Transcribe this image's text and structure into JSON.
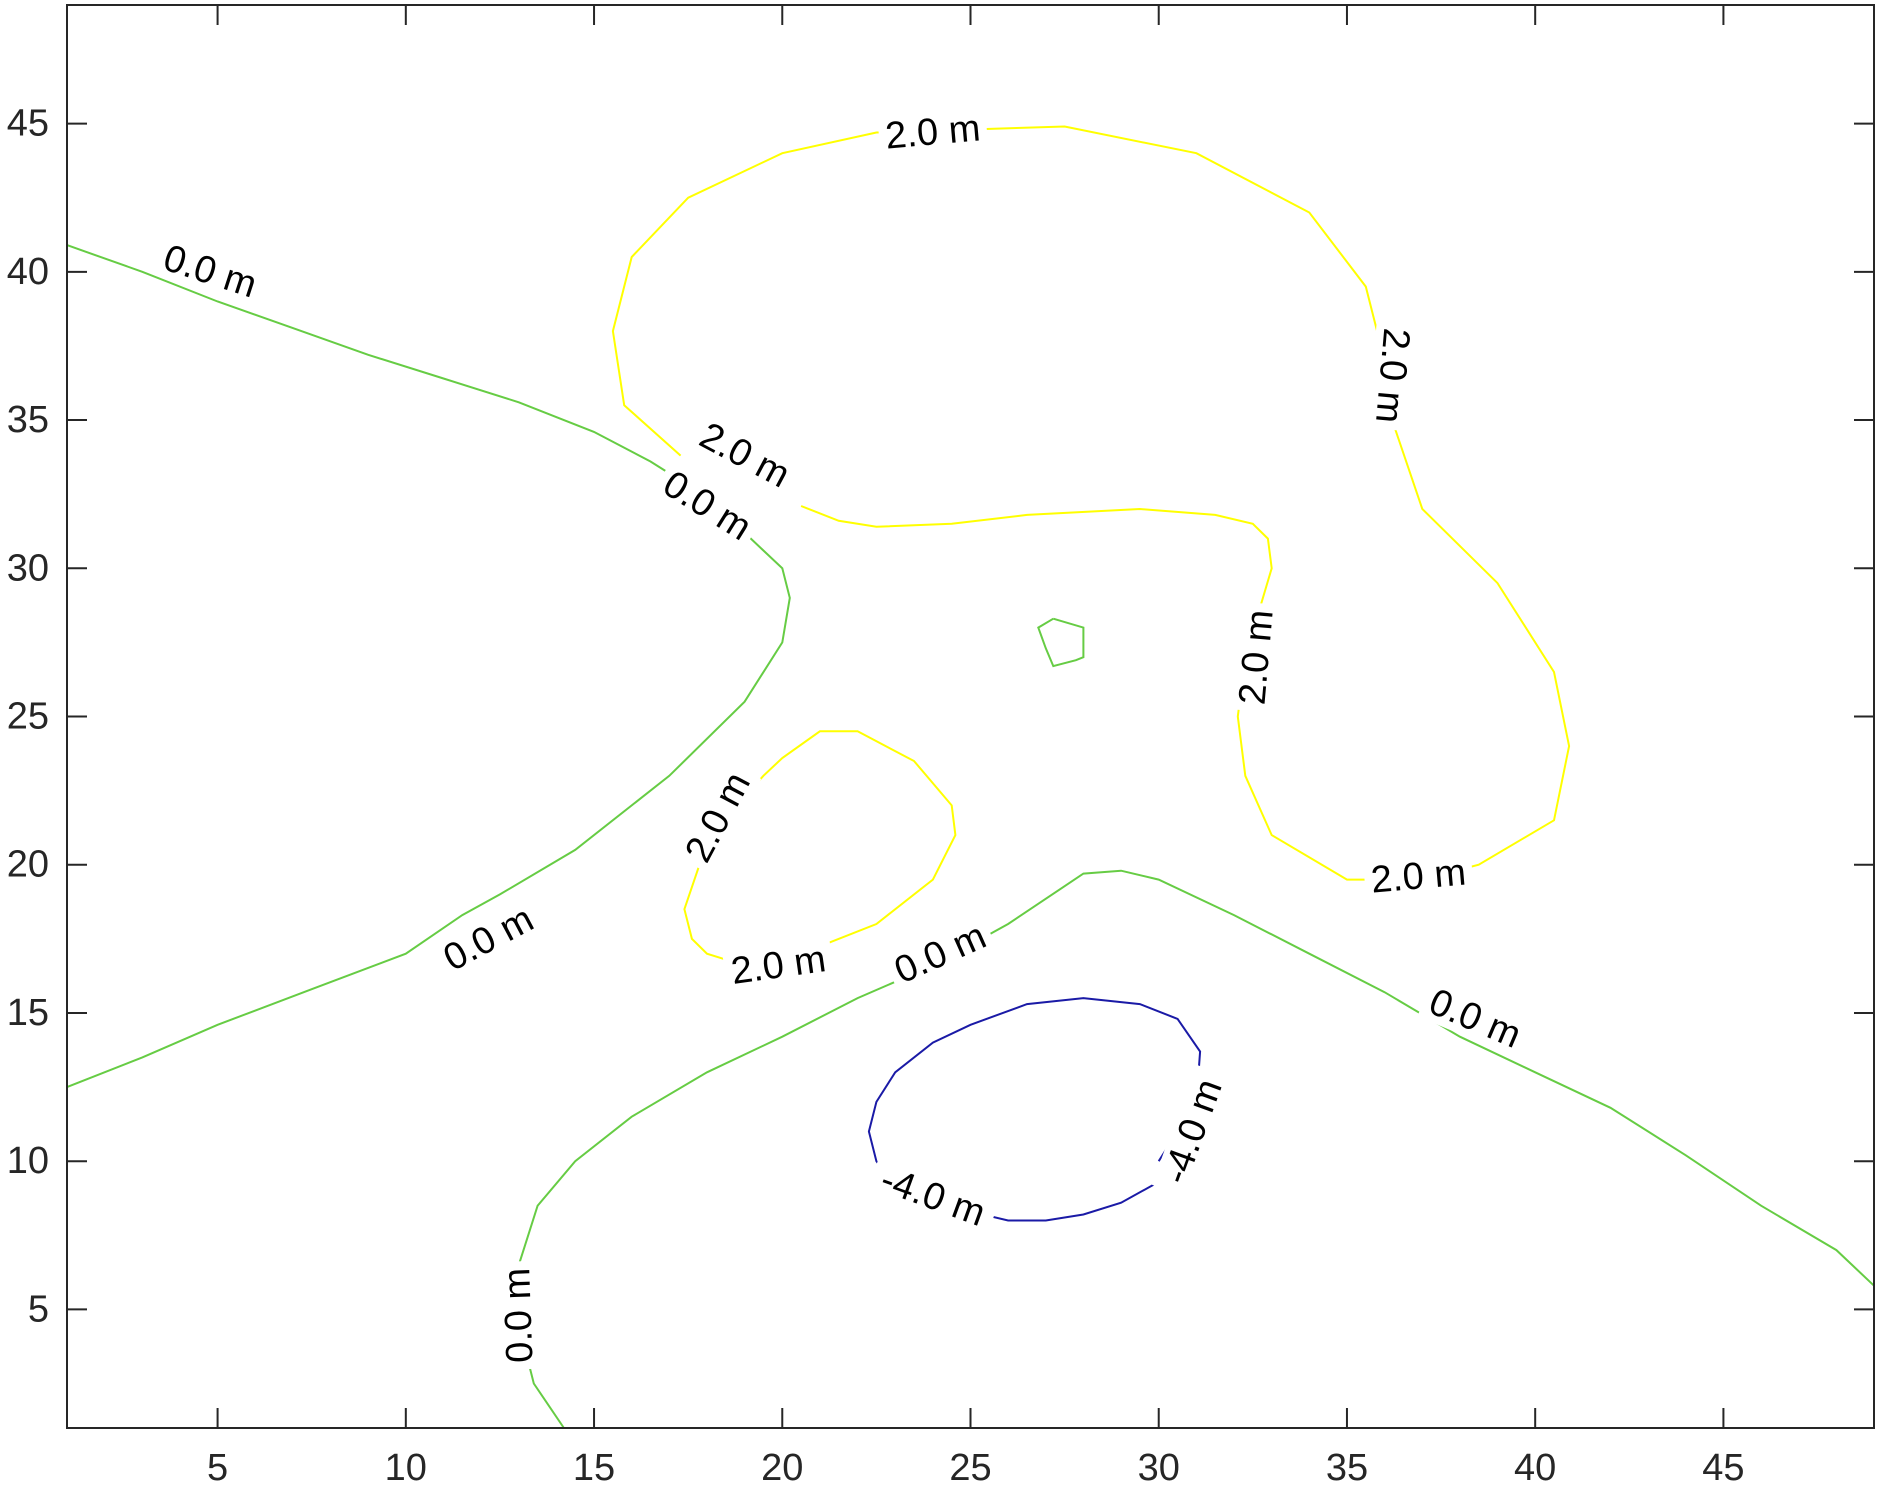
{
  "chart_data": {
    "type": "contour",
    "title": "",
    "xlabel": "",
    "ylabel": "",
    "xlim": [
      1,
      49
    ],
    "ylim": [
      1,
      49
    ],
    "xticks": [
      5,
      10,
      15,
      20,
      25,
      30,
      35,
      40,
      45
    ],
    "yticks": [
      5,
      10,
      15,
      20,
      25,
      30,
      35,
      40,
      45
    ],
    "grid": false,
    "levels": [
      {
        "level": 2.0,
        "color": "#ffff00",
        "contours": [
          {
            "points": [
              [
                17.3,
                33.8
              ],
              [
                15.8,
                35.5
              ],
              [
                15.5,
                38.0
              ],
              [
                16.0,
                40.5
              ],
              [
                17.5,
                42.5
              ],
              [
                20.0,
                44.0
              ],
              [
                22.5,
                44.7
              ],
              [
                27.5,
                44.9
              ],
              [
                31.0,
                44.0
              ],
              [
                34.0,
                42.0
              ],
              [
                35.5,
                39.5
              ],
              [
                36.0,
                37.0
              ],
              [
                36.2,
                35.0
              ],
              [
                37.0,
                32.0
              ],
              [
                39.0,
                29.5
              ],
              [
                40.5,
                26.5
              ],
              [
                40.9,
                24.0
              ],
              [
                40.5,
                21.5
              ],
              [
                38.5,
                20.0
              ],
              [
                37.0,
                19.5
              ],
              [
                35.0,
                19.5
              ],
              [
                33.0,
                21.0
              ],
              [
                32.3,
                23.0
              ],
              [
                32.1,
                25.0
              ],
              [
                32.3,
                27.0
              ],
              [
                33.0,
                30.0
              ],
              [
                32.9,
                31.0
              ],
              [
                32.5,
                31.5
              ],
              [
                31.5,
                31.8
              ],
              [
                29.5,
                32.0
              ],
              [
                26.5,
                31.8
              ],
              [
                24.5,
                31.5
              ],
              [
                22.5,
                31.4
              ],
              [
                21.5,
                31.6
              ],
              [
                20.5,
                32.1
              ]
            ],
            "labels": [
              {
                "text": "2.0 m",
                "x": 24.0,
                "y": 44.7,
                "angle": -5
              },
              {
                "text": "2.0 m",
                "x": 36.2,
                "y": 36.5,
                "angle": 95
              },
              {
                "text": "2.0 m",
                "x": 32.6,
                "y": 27.0,
                "angle": -85
              },
              {
                "text": "2.0 m",
                "x": 36.9,
                "y": 19.6,
                "angle": -5
              },
              {
                "text": "2.0 m",
                "x": 19.0,
                "y": 33.8,
                "angle": 28
              }
            ]
          },
          {
            "points": [
              [
                20.5,
                17.0
              ],
              [
                22.5,
                18.0
              ],
              [
                24.0,
                19.5
              ],
              [
                24.6,
                21.0
              ],
              [
                24.5,
                22.0
              ],
              [
                23.5,
                23.5
              ],
              [
                22.0,
                24.5
              ],
              [
                21.0,
                24.5
              ],
              [
                20.0,
                23.6
              ],
              [
                19.5,
                23.0
              ],
              [
                18.8,
                22.0
              ],
              [
                17.8,
                20.0
              ],
              [
                17.4,
                18.5
              ],
              [
                17.6,
                17.5
              ],
              [
                18.0,
                17.0
              ],
              [
                18.5,
                16.8
              ]
            ],
            "labels": [
              {
                "text": "2.0 m",
                "x": 18.3,
                "y": 21.6,
                "angle": -62
              },
              {
                "text": "2.0 m",
                "x": 19.9,
                "y": 16.6,
                "angle": -8
              }
            ]
          }
        ]
      },
      {
        "level": 0.0,
        "color": "#66cc44",
        "contours": [
          {
            "points": [
              [
                1.0,
                40.9
              ],
              [
                3.0,
                40.0
              ],
              [
                5.0,
                39.0
              ],
              [
                7.0,
                38.1
              ],
              [
                9.0,
                37.2
              ],
              [
                11.0,
                36.4
              ],
              [
                13.0,
                35.6
              ],
              [
                15.0,
                34.6
              ],
              [
                16.5,
                33.6
              ],
              [
                18.0,
                32.4
              ],
              [
                19.5,
                30.6
              ],
              [
                20.0,
                30.0
              ],
              [
                20.2,
                29.0
              ],
              [
                20.0,
                27.5
              ],
              [
                19.0,
                25.5
              ],
              [
                17.0,
                23.0
              ],
              [
                14.5,
                20.5
              ],
              [
                12.5,
                19.0
              ],
              [
                11.5,
                18.3
              ],
              [
                10.0,
                17.0
              ],
              [
                7.5,
                15.8
              ],
              [
                5.0,
                14.6
              ],
              [
                3.0,
                13.5
              ],
              [
                1.0,
                12.5
              ]
            ],
            "labels": [
              {
                "text": "0.0 m",
                "x": 4.8,
                "y": 40.0,
                "angle": 18
              },
              {
                "text": "0.0 m",
                "x": 18.0,
                "y": 32.1,
                "angle": 32
              },
              {
                "text": "0.0 m",
                "x": 12.2,
                "y": 17.5,
                "angle": -28
              }
            ]
          },
          {
            "points": [
              [
                14.2,
                1.0
              ],
              [
                13.4,
                2.5
              ],
              [
                13.0,
                4.5
              ],
              [
                13.0,
                6.5
              ],
              [
                13.5,
                8.5
              ],
              [
                14.5,
                10.0
              ],
              [
                16.0,
                11.5
              ],
              [
                18.0,
                13.0
              ],
              [
                20.0,
                14.2
              ],
              [
                22.0,
                15.5
              ],
              [
                24.0,
                16.6
              ],
              [
                26.0,
                18.0
              ],
              [
                28.0,
                19.7
              ],
              [
                29.0,
                19.8
              ],
              [
                30.0,
                19.5
              ],
              [
                32.0,
                18.3
              ],
              [
                34.0,
                17.0
              ],
              [
                36.0,
                15.7
              ],
              [
                38.0,
                14.2
              ],
              [
                40.0,
                13.0
              ],
              [
                42.0,
                11.8
              ],
              [
                44.0,
                10.2
              ],
              [
                46.0,
                8.5
              ],
              [
                48.0,
                7.0
              ],
              [
                49.0,
                5.8
              ]
            ],
            "labels": [
              {
                "text": "0.0 m",
                "x": 13.0,
                "y": 4.8,
                "angle": -92
              },
              {
                "text": "0.0 m",
                "x": 24.2,
                "y": 17.0,
                "angle": -24
              },
              {
                "text": "0.0 m",
                "x": 38.4,
                "y": 14.8,
                "angle": 23
              }
            ]
          },
          {
            "points": [
              [
                27.2,
                28.3
              ],
              [
                28.0,
                28.0
              ],
              [
                28.0,
                27.0
              ],
              [
                27.8,
                26.9
              ],
              [
                27.2,
                26.7
              ],
              [
                27.0,
                27.3
              ],
              [
                26.8,
                28.0
              ],
              [
                27.2,
                28.3
              ]
            ],
            "labels": []
          }
        ]
      },
      {
        "level": -4.0,
        "color": "#1a1aa6",
        "contours": [
          {
            "points": [
              [
                30.0,
                10.0
              ],
              [
                31.0,
                12.0
              ],
              [
                31.1,
                13.7
              ],
              [
                30.5,
                14.8
              ],
              [
                29.5,
                15.3
              ],
              [
                28.0,
                15.5
              ],
              [
                26.5,
                15.3
              ],
              [
                25.0,
                14.6
              ],
              [
                24.0,
                14.0
              ],
              [
                23.0,
                13.0
              ],
              [
                22.5,
                12.0
              ],
              [
                22.3,
                11.0
              ],
              [
                22.5,
                10.0
              ],
              [
                22.8,
                9.5
              ],
              [
                23.0,
                9.2
              ],
              [
                25.0,
                8.3
              ],
              [
                26.0,
                8.0
              ],
              [
                27.0,
                8.0
              ],
              [
                28.0,
                8.2
              ],
              [
                29.0,
                8.6
              ],
              [
                30.0,
                9.3
              ]
            ],
            "labels": [
              {
                "text": "-4.0 m",
                "x": 30.9,
                "y": 11.0,
                "angle": -70
              },
              {
                "text": "-4.0 m",
                "x": 24.0,
                "y": 8.8,
                "angle": 20
              }
            ]
          }
        ]
      }
    ]
  }
}
